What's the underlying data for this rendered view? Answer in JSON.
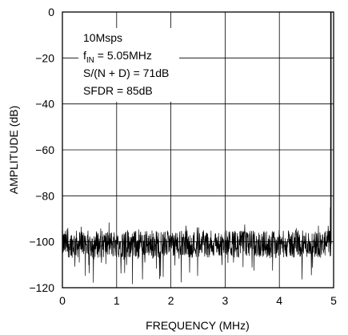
{
  "chart_data": {
    "type": "line",
    "title": "",
    "xlabel": "FREQUENCY (MHz)",
    "ylabel": "AMPLITUDE (dB)",
    "xlim": [
      0,
      5
    ],
    "ylim": [
      -120,
      0
    ],
    "x_ticks": [
      "0",
      "1",
      "2",
      "3",
      "4",
      "5"
    ],
    "y_ticks": [
      "0",
      "−20",
      "−40",
      "−60",
      "−80",
      "−100",
      "−120"
    ],
    "grid": true,
    "legend": "none",
    "annotations": {
      "line1": "10Msps",
      "line2_main": "f",
      "line2_sub": "IN",
      "line2_rest": " = 5.05MHz",
      "line3": "S/(N + D) = 71dB",
      "line4": "SFDR = 85dB"
    },
    "noise_floor_db": -101,
    "noise_spread_db": 6,
    "spurs": [
      {
        "x": 4.94,
        "y": -85
      },
      {
        "x": 4.9,
        "y": -93
      },
      {
        "x": 4.72,
        "y": -93
      },
      {
        "x": 0.1,
        "y": -94
      },
      {
        "x": 1.2,
        "y": -95
      },
      {
        "x": 2.6,
        "y": -95
      },
      {
        "x": 3.4,
        "y": -96
      },
      {
        "x": 4.3,
        "y": -95
      }
    ],
    "fundamental": {
      "x": 4.95,
      "y": 0
    },
    "line_color": "#000000"
  }
}
